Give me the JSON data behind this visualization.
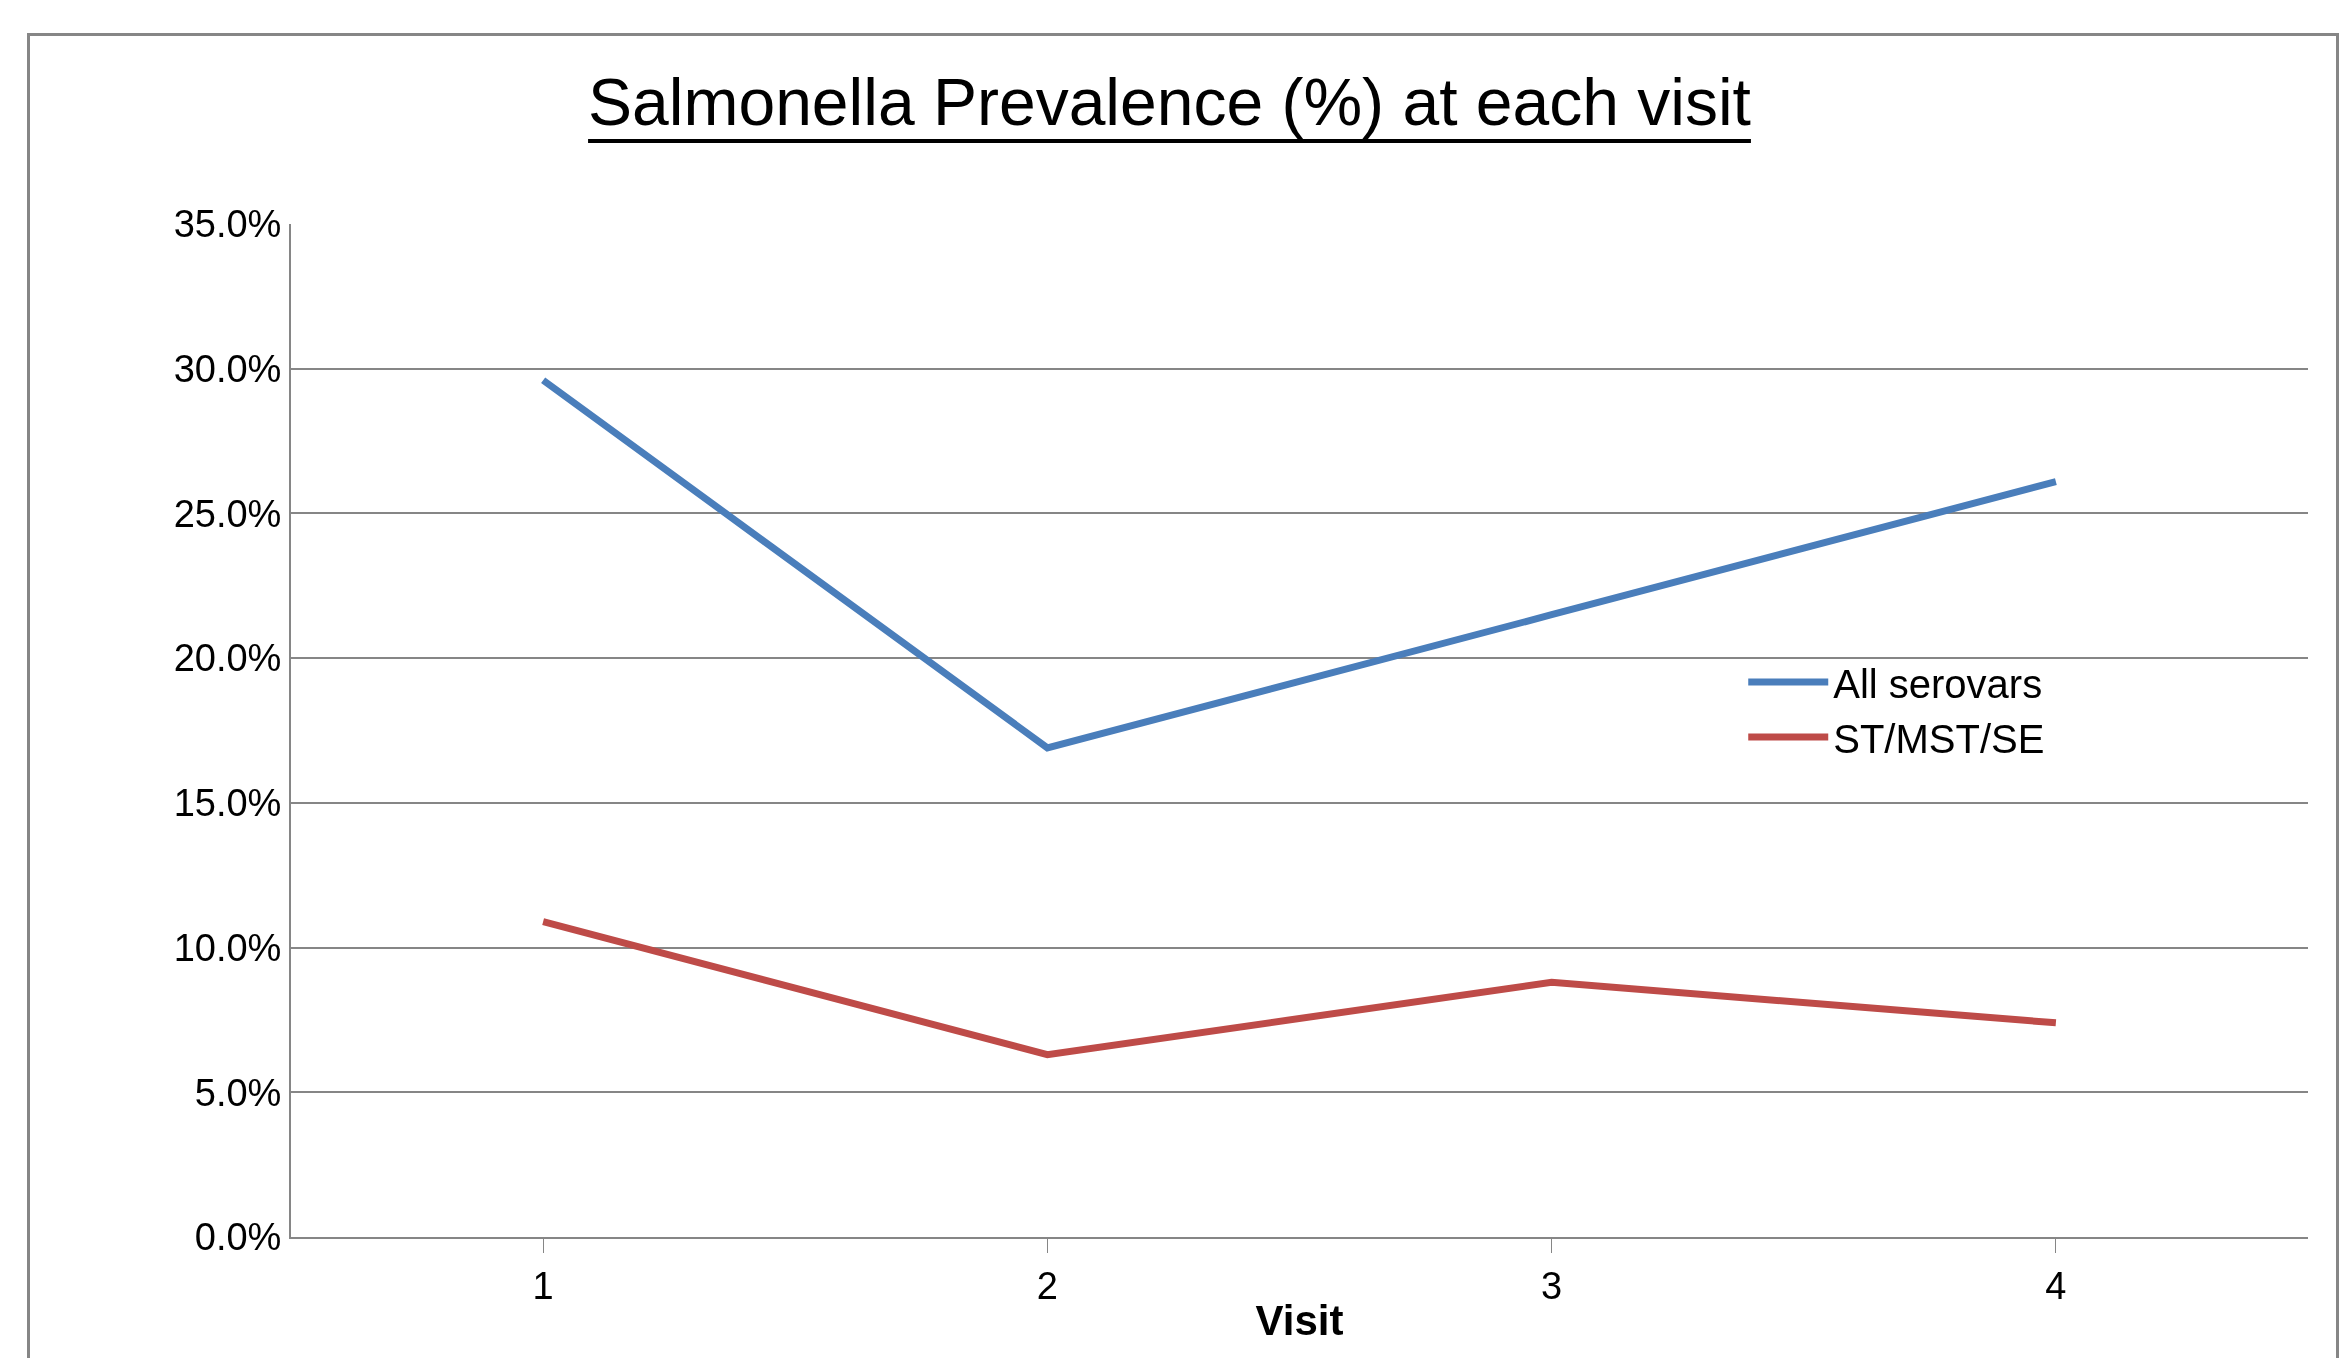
{
  "chart_data": {
    "type": "line",
    "title": "Salmonella Prevalence (%) at each visit",
    "xlabel": "Visit",
    "categories": [
      "1",
      "2",
      "3",
      "4"
    ],
    "series": [
      {
        "name": "All serovars",
        "color": "#4a7ebb",
        "values": [
          29.6,
          16.9,
          21.5,
          26.1
        ]
      },
      {
        "name": "ST/MST/SE",
        "color": "#be4b48",
        "values": [
          10.9,
          6.3,
          8.8,
          7.4
        ]
      }
    ],
    "ylim": [
      0,
      35
    ],
    "yticks": [
      {
        "value": 0,
        "label": "0.0%"
      },
      {
        "value": 5,
        "label": "5.0%"
      },
      {
        "value": 10,
        "label": "10.0%"
      },
      {
        "value": 15,
        "label": "15.0%"
      },
      {
        "value": 20,
        "label": "20.0%"
      },
      {
        "value": 25,
        "label": "25.0%"
      },
      {
        "value": 30,
        "label": "30.0%"
      },
      {
        "value": 35,
        "label": "35.0%"
      }
    ],
    "grid": "y",
    "legend": "right",
    "marker": "none",
    "line_style": "solid"
  }
}
